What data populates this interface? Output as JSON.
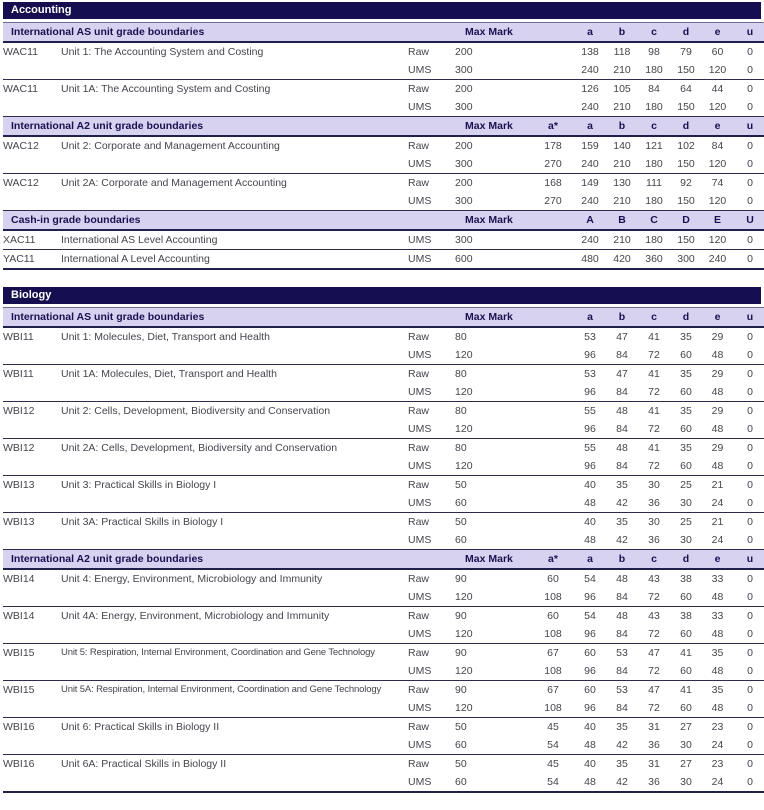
{
  "colors": {
    "subject_bar_bg": "#150e4f",
    "subject_bar_text": "#ffffff",
    "section_header_bg": "#d7d2f0",
    "section_header_text": "#1a1150",
    "body_text": "#45454e",
    "rule_dark": "#20204c"
  },
  "labels": {
    "max_mark": "Max Mark"
  },
  "sections": [
    {
      "subject": "Accounting",
      "blocks": [
        {
          "title": "International AS unit grade boundaries",
          "grade_headers": [
            "",
            "a",
            "b",
            "c",
            "d",
            "e",
            "u"
          ],
          "units": [
            {
              "code": "WAC11",
              "name": "Unit 1: The Accounting System and Costing",
              "rows": [
                {
                  "type": "Raw",
                  "max_mark": "200",
                  "grades": [
                    "",
                    "138",
                    "118",
                    "98",
                    "79",
                    "60",
                    "0"
                  ]
                },
                {
                  "type": "UMS",
                  "max_mark": "300",
                  "grades": [
                    "",
                    "240",
                    "210",
                    "180",
                    "150",
                    "120",
                    "0"
                  ]
                }
              ]
            },
            {
              "code": "WAC11",
              "name": "Unit 1A: The Accounting System and Costing",
              "rows": [
                {
                  "type": "Raw",
                  "max_mark": "200",
                  "grades": [
                    "",
                    "126",
                    "105",
                    "84",
                    "64",
                    "44",
                    "0"
                  ]
                },
                {
                  "type": "UMS",
                  "max_mark": "300",
                  "grades": [
                    "",
                    "240",
                    "210",
                    "180",
                    "150",
                    "120",
                    "0"
                  ]
                }
              ]
            }
          ]
        },
        {
          "title": "International A2 unit grade boundaries",
          "grade_headers": [
            "a*",
            "a",
            "b",
            "c",
            "d",
            "e",
            "u"
          ],
          "units": [
            {
              "code": "WAC12",
              "name": "Unit 2: Corporate and Management Accounting",
              "rows": [
                {
                  "type": "Raw",
                  "max_mark": "200",
                  "grades": [
                    "178",
                    "159",
                    "140",
                    "121",
                    "102",
                    "84",
                    "0"
                  ]
                },
                {
                  "type": "UMS",
                  "max_mark": "300",
                  "grades": [
                    "270",
                    "240",
                    "210",
                    "180",
                    "150",
                    "120",
                    "0"
                  ]
                }
              ]
            },
            {
              "code": "WAC12",
              "name": "Unit 2A: Corporate and Management Accounting",
              "rows": [
                {
                  "type": "Raw",
                  "max_mark": "200",
                  "grades": [
                    "168",
                    "149",
                    "130",
                    "111",
                    "92",
                    "74",
                    "0"
                  ]
                },
                {
                  "type": "UMS",
                  "max_mark": "300",
                  "grades": [
                    "270",
                    "240",
                    "210",
                    "180",
                    "150",
                    "120",
                    "0"
                  ]
                }
              ]
            }
          ]
        },
        {
          "title": "Cash-in grade boundaries",
          "grade_headers": [
            "",
            "A",
            "B",
            "C",
            "D",
            "E",
            "U"
          ],
          "units": [
            {
              "code": "XAC11",
              "name": "International AS Level Accounting",
              "rows": [
                {
                  "type": "UMS",
                  "max_mark": "300",
                  "grades": [
                    "",
                    "240",
                    "210",
                    "180",
                    "150",
                    "120",
                    "0"
                  ]
                }
              ]
            },
            {
              "code": "YAC11",
              "name": "International A Level Accounting",
              "rows": [
                {
                  "type": "UMS",
                  "max_mark": "600",
                  "grades": [
                    "",
                    "480",
                    "420",
                    "360",
                    "300",
                    "240",
                    "0"
                  ]
                }
              ]
            }
          ]
        }
      ]
    },
    {
      "subject": "Biology",
      "blocks": [
        {
          "title": "International AS unit grade boundaries",
          "grade_headers": [
            "",
            "a",
            "b",
            "c",
            "d",
            "e",
            "u"
          ],
          "units": [
            {
              "code": "WBI11",
              "name": "Unit 1: Molecules, Diet, Transport and Health",
              "rows": [
                {
                  "type": "Raw",
                  "max_mark": "80",
                  "grades": [
                    "",
                    "53",
                    "47",
                    "41",
                    "35",
                    "29",
                    "0"
                  ]
                },
                {
                  "type": "UMS",
                  "max_mark": "120",
                  "grades": [
                    "",
                    "96",
                    "84",
                    "72",
                    "60",
                    "48",
                    "0"
                  ]
                }
              ]
            },
            {
              "code": "WBI11",
              "name": "Unit 1A: Molecules, Diet, Transport and Health",
              "rows": [
                {
                  "type": "Raw",
                  "max_mark": "80",
                  "grades": [
                    "",
                    "53",
                    "47",
                    "41",
                    "35",
                    "29",
                    "0"
                  ]
                },
                {
                  "type": "UMS",
                  "max_mark": "120",
                  "grades": [
                    "",
                    "96",
                    "84",
                    "72",
                    "60",
                    "48",
                    "0"
                  ]
                }
              ]
            },
            {
              "code": "WBI12",
              "name": "Unit 2: Cells, Development, Biodiversity and Conservation",
              "rows": [
                {
                  "type": "Raw",
                  "max_mark": "80",
                  "grades": [
                    "",
                    "55",
                    "48",
                    "41",
                    "35",
                    "29",
                    "0"
                  ]
                },
                {
                  "type": "UMS",
                  "max_mark": "120",
                  "grades": [
                    "",
                    "96",
                    "84",
                    "72",
                    "60",
                    "48",
                    "0"
                  ]
                }
              ]
            },
            {
              "code": "WBI12",
              "name": "Unit 2A: Cells, Development, Biodiversity and Conservation",
              "rows": [
                {
                  "type": "Raw",
                  "max_mark": "80",
                  "grades": [
                    "",
                    "55",
                    "48",
                    "41",
                    "35",
                    "29",
                    "0"
                  ]
                },
                {
                  "type": "UMS",
                  "max_mark": "120",
                  "grades": [
                    "",
                    "96",
                    "84",
                    "72",
                    "60",
                    "48",
                    "0"
                  ]
                }
              ]
            },
            {
              "code": "WBI13",
              "name": "Unit 3: Practical Skills in Biology I",
              "rows": [
                {
                  "type": "Raw",
                  "max_mark": "50",
                  "grades": [
                    "",
                    "40",
                    "35",
                    "30",
                    "25",
                    "21",
                    "0"
                  ]
                },
                {
                  "type": "UMS",
                  "max_mark": "60",
                  "grades": [
                    "",
                    "48",
                    "42",
                    "36",
                    "30",
                    "24",
                    "0"
                  ]
                }
              ]
            },
            {
              "code": "WBI13",
              "name": "Unit 3A: Practical Skills in Biology I",
              "rows": [
                {
                  "type": "Raw",
                  "max_mark": "50",
                  "grades": [
                    "",
                    "40",
                    "35",
                    "30",
                    "25",
                    "21",
                    "0"
                  ]
                },
                {
                  "type": "UMS",
                  "max_mark": "60",
                  "grades": [
                    "",
                    "48",
                    "42",
                    "36",
                    "30",
                    "24",
                    "0"
                  ]
                }
              ]
            }
          ]
        },
        {
          "title": "International A2 unit grade boundaries",
          "grade_headers": [
            "a*",
            "a",
            "b",
            "c",
            "d",
            "e",
            "u"
          ],
          "units": [
            {
              "code": "WBI14",
              "name": "Unit 4: Energy, Environment, Microbiology and Immunity",
              "rows": [
                {
                  "type": "Raw",
                  "max_mark": "90",
                  "grades": [
                    "60",
                    "54",
                    "48",
                    "43",
                    "38",
                    "33",
                    "0"
                  ]
                },
                {
                  "type": "UMS",
                  "max_mark": "120",
                  "grades": [
                    "108",
                    "96",
                    "84",
                    "72",
                    "60",
                    "48",
                    "0"
                  ]
                }
              ]
            },
            {
              "code": "WBI14",
              "name": "Unit 4A: Energy, Environment, Microbiology and Immunity",
              "rows": [
                {
                  "type": "Raw",
                  "max_mark": "90",
                  "grades": [
                    "60",
                    "54",
                    "48",
                    "43",
                    "38",
                    "33",
                    "0"
                  ]
                },
                {
                  "type": "UMS",
                  "max_mark": "120",
                  "grades": [
                    "108",
                    "96",
                    "84",
                    "72",
                    "60",
                    "48",
                    "0"
                  ]
                }
              ]
            },
            {
              "code": "WBI15",
              "name": "Unit 5: Respiration, Internal Environment, Coordination and Gene Technology",
              "rows": [
                {
                  "type": "Raw",
                  "max_mark": "90",
                  "grades": [
                    "67",
                    "60",
                    "53",
                    "47",
                    "41",
                    "35",
                    "0"
                  ]
                },
                {
                  "type": "UMS",
                  "max_mark": "120",
                  "grades": [
                    "108",
                    "96",
                    "84",
                    "72",
                    "60",
                    "48",
                    "0"
                  ]
                }
              ]
            },
            {
              "code": "WBI15",
              "name": "Unit 5A: Respiration, Internal Environment, Coordination and Gene Technology",
              "rows": [
                {
                  "type": "Raw",
                  "max_mark": "90",
                  "grades": [
                    "67",
                    "60",
                    "53",
                    "47",
                    "41",
                    "35",
                    "0"
                  ]
                },
                {
                  "type": "UMS",
                  "max_mark": "120",
                  "grades": [
                    "108",
                    "96",
                    "84",
                    "72",
                    "60",
                    "48",
                    "0"
                  ]
                }
              ]
            },
            {
              "code": "WBI16",
              "name": "Unit 6: Practical Skills in Biology II",
              "rows": [
                {
                  "type": "Raw",
                  "max_mark": "50",
                  "grades": [
                    "45",
                    "40",
                    "35",
                    "31",
                    "27",
                    "23",
                    "0"
                  ]
                },
                {
                  "type": "UMS",
                  "max_mark": "60",
                  "grades": [
                    "54",
                    "48",
                    "42",
                    "36",
                    "30",
                    "24",
                    "0"
                  ]
                }
              ]
            },
            {
              "code": "WBI16",
              "name": "Unit 6A: Practical Skills in Biology II",
              "rows": [
                {
                  "type": "Raw",
                  "max_mark": "50",
                  "grades": [
                    "45",
                    "40",
                    "35",
                    "31",
                    "27",
                    "23",
                    "0"
                  ]
                },
                {
                  "type": "UMS",
                  "max_mark": "60",
                  "grades": [
                    "54",
                    "48",
                    "42",
                    "36",
                    "30",
                    "24",
                    "0"
                  ]
                }
              ]
            }
          ]
        }
      ]
    }
  ]
}
